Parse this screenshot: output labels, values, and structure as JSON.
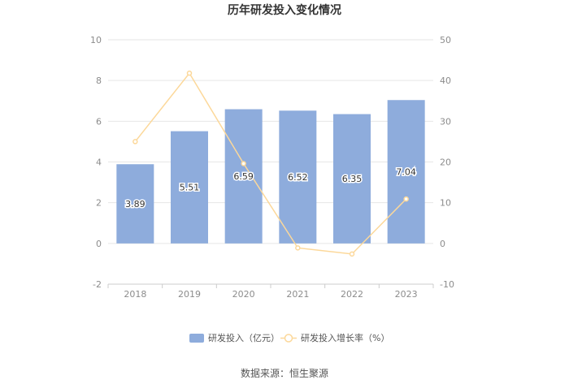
{
  "chart_data": {
    "type": "bar",
    "title": "历年研发投入变化情况",
    "categories": [
      "2018",
      "2019",
      "2020",
      "2021",
      "2022",
      "2023"
    ],
    "series": [
      {
        "name": "研发投入（亿元）",
        "type": "bar",
        "axis": "left",
        "color": "#8eacdc",
        "values": [
          3.89,
          5.51,
          6.59,
          6.52,
          6.35,
          7.04
        ],
        "value_labels": [
          "3.89",
          "5.51",
          "6.59",
          "6.52",
          "6.35",
          "7.04"
        ]
      },
      {
        "name": "研发投入增长率（%）",
        "type": "line",
        "axis": "right",
        "color": "#fcd89a",
        "values": [
          25.0,
          41.8,
          19.6,
          -1.1,
          -2.6,
          10.9
        ]
      }
    ],
    "y_left": {
      "min": -2,
      "max": 10,
      "ticks": [
        "10",
        "8",
        "6",
        "4",
        "2",
        "0",
        "-2"
      ],
      "tick_values": [
        10,
        8,
        6,
        4,
        2,
        0,
        -2
      ]
    },
    "y_right": {
      "min": -10,
      "max": 50,
      "ticks": [
        "50",
        "40",
        "30",
        "20",
        "10",
        "0",
        "-10"
      ],
      "tick_values": [
        50,
        40,
        30,
        20,
        10,
        0,
        -10
      ]
    },
    "grid": true,
    "legend_position": "bottom"
  },
  "source_text": "数据来源：恒生聚源"
}
